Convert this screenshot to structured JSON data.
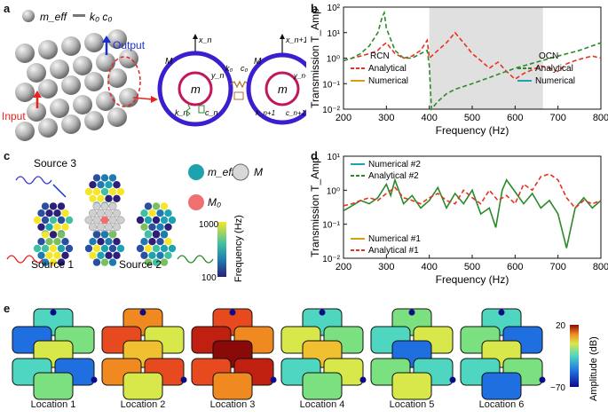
{
  "panels": {
    "a": {
      "letter": "a",
      "legend_meff": "m_eff",
      "legend_k0c0": "k₀ c₀",
      "output_label": "Output",
      "input_label": "Input",
      "mass_label": "m",
      "outer_mass_label": "M",
      "x_left": "x_n",
      "x_right": "x_n+1",
      "y_left": "y_n",
      "y_right": "y_n+1",
      "k0": "k₀",
      "c0": "c₀",
      "kn": "k_n",
      "cn": "c_n",
      "kn1": "k_n+1",
      "cn1": "c_n+1"
    },
    "b": {
      "letter": "b"
    },
    "c": {
      "letter": "c",
      "source1": "Source 1",
      "source2": "Source 2",
      "source3": "Source 3",
      "legend_meff": "m_eff",
      "legend_M": "M",
      "legend_M0": "M₀",
      "colorbar_title": "Frequency (Hz)",
      "colorbar_max": "1000",
      "colorbar_min": "100"
    },
    "d": {
      "letter": "d"
    },
    "e": {
      "letter": "e",
      "colorbar_title": "Amplitude (dB)",
      "colorbar_max": "20",
      "colorbar_min": "−70",
      "locations": [
        "Location 1",
        "Location 2",
        "Location 3",
        "Location 4",
        "Location 5",
        "Location 6"
      ]
    }
  },
  "chart_data": [
    {
      "id": "b",
      "type": "line",
      "xlabel": "Frequency (Hz)",
      "ylabel": "Transmission T_Amp",
      "xlim": [
        200,
        800
      ],
      "ylim_log10": [
        -2,
        2
      ],
      "yscale": "log",
      "xticks": [
        "200",
        "300",
        "400",
        "500",
        "600",
        "700",
        "800"
      ],
      "yticks": [
        "10⁻²",
        "10⁻¹",
        "10⁰",
        "10¹",
        "10²"
      ],
      "bandgap": [
        400,
        665
      ],
      "legend_groups": [
        {
          "title": "RCN",
          "entries": [
            "Analytical",
            "Numerical"
          ]
        },
        {
          "title": "OCN",
          "entries": [
            "Analytical",
            "Numerical"
          ]
        }
      ],
      "series": [
        {
          "name": "RCN Analytical",
          "color": "#e8311f",
          "dashed": true,
          "x": [
            200,
            220,
            240,
            260,
            280,
            290,
            300,
            320,
            340,
            360,
            380,
            395,
            400,
            420,
            440,
            460,
            480,
            500,
            520,
            540,
            560,
            580,
            600,
            620,
            640,
            660,
            680,
            700,
            720,
            740,
            760,
            780,
            800
          ],
          "y": [
            0.8,
            1.0,
            1.2,
            1.5,
            2.0,
            3.0,
            4.0,
            1.5,
            1.0,
            1.2,
            2.0,
            5.0,
            1.0,
            2.0,
            4.0,
            10,
            4.0,
            1.5,
            0.8,
            0.4,
            0.7,
            0.3,
            0.15,
            0.25,
            0.35,
            0.5,
            0.4,
            0.3,
            0.6,
            0.8,
            1.0,
            1.2,
            1.0
          ]
        },
        {
          "name": "OCN Analytical",
          "color": "#2a8a2a",
          "dashed": true,
          "x": [
            200,
            220,
            240,
            260,
            280,
            290,
            295,
            300,
            320,
            340,
            360,
            380,
            395,
            400,
            405,
            420,
            440,
            460,
            500,
            550,
            600,
            650,
            700,
            750,
            800
          ],
          "y": [
            0.8,
            1.0,
            1.5,
            3.0,
            10,
            40,
            60,
            15,
            2.0,
            1.0,
            1.0,
            1.5,
            2.0,
            0.5,
            0.01,
            0.02,
            0.04,
            0.06,
            0.1,
            0.2,
            0.4,
            0.7,
            1.2,
            2.0,
            4.0
          ]
        }
      ]
    },
    {
      "id": "d",
      "type": "line",
      "xlabel": "Frequency (Hz)",
      "ylabel": "Transmission T_Amp",
      "xlim": [
        200,
        800
      ],
      "ylim_log10": [
        -2,
        1
      ],
      "yscale": "log",
      "xticks": [
        "200",
        "300",
        "400",
        "500",
        "600",
        "700",
        "800"
      ],
      "yticks": [
        "10⁻²",
        "10⁻¹",
        "10⁰",
        "10¹"
      ],
      "legend_top": [
        "Numerical #2",
        "Analytical #2"
      ],
      "legend_bottom": [
        "Numerical #1",
        "Analytical #1"
      ],
      "series": [
        {
          "name": "Analytical #2",
          "color": "#2a8a2a",
          "dashed": false,
          "x": [
            200,
            220,
            240,
            260,
            280,
            300,
            310,
            320,
            340,
            360,
            380,
            400,
            420,
            440,
            460,
            480,
            500,
            520,
            540,
            555,
            570,
            580,
            600,
            620,
            640,
            660,
            680,
            700,
            720,
            740,
            760,
            780,
            800
          ],
          "y": [
            0.25,
            0.35,
            0.5,
            0.4,
            0.6,
            1.5,
            0.7,
            2.0,
            0.4,
            0.7,
            0.3,
            0.5,
            1.2,
            0.3,
            0.8,
            0.4,
            1.0,
            0.2,
            0.3,
            0.08,
            1.0,
            2.0,
            0.9,
            0.4,
            0.8,
            0.3,
            0.5,
            0.2,
            0.02,
            0.3,
            0.6,
            0.3,
            0.5
          ]
        },
        {
          "name": "Analytical #1",
          "color": "#e8311f",
          "dashed": true,
          "x": [
            200,
            220,
            240,
            260,
            280,
            300,
            320,
            340,
            360,
            380,
            400,
            420,
            440,
            460,
            480,
            500,
            520,
            540,
            560,
            580,
            600,
            620,
            640,
            660,
            680,
            700,
            720,
            740,
            760,
            780,
            800
          ],
          "y": [
            0.35,
            0.4,
            0.5,
            0.6,
            0.5,
            0.8,
            1.2,
            0.6,
            0.5,
            0.4,
            0.6,
            0.8,
            0.5,
            0.4,
            1.0,
            0.6,
            0.4,
            1.0,
            0.5,
            0.7,
            0.4,
            1.5,
            1.0,
            2.5,
            3.0,
            2.0,
            0.6,
            0.3,
            0.5,
            0.4,
            0.5
          ]
        }
      ]
    }
  ]
}
